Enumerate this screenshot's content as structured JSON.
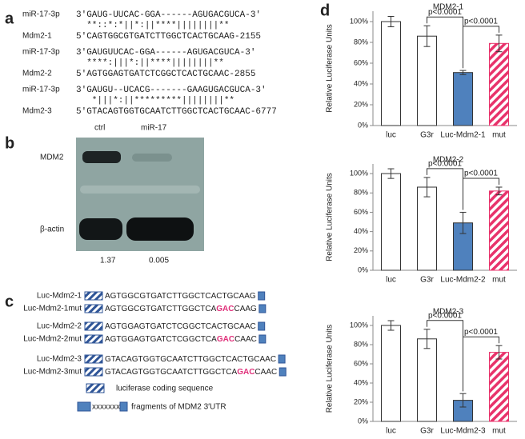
{
  "panel_labels": [
    "a",
    "b",
    "c",
    "d"
  ],
  "alignments": [
    {
      "mirna_label": "miR-17-3p",
      "mirna_seq": "3′GAUG-UUCAC-GGA------AGUGACGUCA-3′",
      "match": "  **::*:*||*:||****||||||||**",
      "target_label": "Mdm2-1",
      "target_seq": "5′CAGTGGCGTGATCTTGGCTCACTGCAAG-2155"
    },
    {
      "mirna_label": "miR-17-3p",
      "mirna_seq": "3′GAUGUUCAC-GGA------AGUGACGUCA-3′",
      "match": "  ****:|||*:||****||||||||**",
      "target_label": "Mdm2-2",
      "target_seq": "5′AGTGGAGTGATCTCGGCTCACTGCAAC-2855"
    },
    {
      "mirna_label": "miR-17-3p",
      "mirna_seq": "3′GAUGU--UCACG-------GAAGUGACGUCA-3′",
      "match": "   *|||*:||*********||||||||**",
      "target_label": "Mdm2-3",
      "target_seq": "5′GTACAGTGGTGCAATCTTGGCTCACTGCAAC-6777"
    }
  ],
  "blot": {
    "lanes": [
      "ctrl",
      "miR-17"
    ],
    "bands": [
      "MDM2",
      "β-actin"
    ],
    "ratios": [
      1.37,
      0.005
    ]
  },
  "constructs": [
    {
      "label": "Luc-Mdm2-1",
      "seq": "AGTGGCGTGATCTTGGCTCACTGCAAG"
    },
    {
      "label": "Luc-Mdm2-1mut",
      "seq_before": "AGTGGCGTGATCTTGGCTCA",
      "seq_mut": "GAC",
      "seq_after": "CAAG"
    },
    {
      "label": "Luc-Mdm2-2",
      "seq": "AGTGGAGTGATCTCGGCTCACTGCAAC"
    },
    {
      "label": "Luc-Mdm2-2mut",
      "seq_before": "AGTGGAGTGATCTCGGCTCA",
      "seq_mut": "GAC",
      "seq_after": "CAAC"
    },
    {
      "label": "Luc-Mdm2-3",
      "seq": "GTACAGTGGTGCAATCTTGGCTCACTGCAAC"
    },
    {
      "label": "Luc-Mdm2-3mut",
      "seq_before": "GTACAGTGGTGCAATCTTGGCTCA",
      "seq_mut": "GAC",
      "seq_after": "CAAC"
    }
  ],
  "construct_legend": {
    "luciferase": "luciferase coding sequence",
    "placeholder": "xxxxxxx",
    "fragment": "fragments of MDM2 3′UTR"
  },
  "chart_data": [
    {
      "type": "bar",
      "title": "MDM2-1",
      "y_label": "Relative Luciferase Units",
      "categories": [
        "luc",
        "G3r",
        "Luc-Mdm2-1",
        "mut"
      ],
      "values": [
        100,
        86,
        51,
        79
      ],
      "errors": [
        5,
        10,
        2,
        8
      ],
      "colors": [
        "#ffffff",
        "#ffffff",
        "#4f81bd",
        "#e8336b"
      ],
      "hatched": [
        false,
        false,
        false,
        true
      ],
      "ylim": [
        0,
        110
      ],
      "yticks": [
        {
          "value": 0,
          "label": "0%"
        },
        {
          "value": 20,
          "label": "20%"
        },
        {
          "value": 40,
          "label": "40%"
        },
        {
          "value": 60,
          "label": "60%"
        },
        {
          "value": 80,
          "label": "80%"
        },
        {
          "value": 100,
          "label": "100%"
        }
      ],
      "annotations": [
        "p<0.0001",
        "p<0.0001"
      ]
    },
    {
      "type": "bar",
      "title": "MDM2-2",
      "y_label": "Relative Luciferase Units",
      "categories": [
        "luc",
        "G3r",
        "Luc-Mdm2-2",
        "mut"
      ],
      "values": [
        100,
        86,
        49,
        82
      ],
      "errors": [
        5,
        10,
        11,
        4
      ],
      "colors": [
        "#ffffff",
        "#ffffff",
        "#4f81bd",
        "#e8336b"
      ],
      "hatched": [
        false,
        false,
        false,
        true
      ],
      "ylim": [
        0,
        110
      ],
      "yticks": [
        {
          "value": 0,
          "label": "0%"
        },
        {
          "value": 20,
          "label": "20%"
        },
        {
          "value": 40,
          "label": "40%"
        },
        {
          "value": 60,
          "label": "60%"
        },
        {
          "value": 80,
          "label": "80%"
        },
        {
          "value": 100,
          "label": "100%"
        }
      ],
      "annotations": [
        "p<0.0001",
        "p<0.0001"
      ]
    },
    {
      "type": "bar",
      "title": "MDM2-3",
      "y_label": "Relative Luciferase Units",
      "categories": [
        "luc",
        "G3r",
        "Luc-Mdm2-3",
        "mut"
      ],
      "values": [
        100,
        86,
        22,
        72
      ],
      "errors": [
        5,
        10,
        7,
        7
      ],
      "colors": [
        "#ffffff",
        "#ffffff",
        "#4f81bd",
        "#e8336b"
      ],
      "hatched": [
        false,
        false,
        false,
        true
      ],
      "ylim": [
        0,
        110
      ],
      "yticks": [
        {
          "value": 0,
          "label": "0%"
        },
        {
          "value": 20,
          "label": "20%"
        },
        {
          "value": 40,
          "label": "40%"
        },
        {
          "value": 60,
          "label": "60%"
        },
        {
          "value": 80,
          "label": "80%"
        },
        {
          "value": 100,
          "label": "100%"
        }
      ],
      "annotations": [
        "p<0.0001",
        "p<0.0001"
      ]
    }
  ]
}
